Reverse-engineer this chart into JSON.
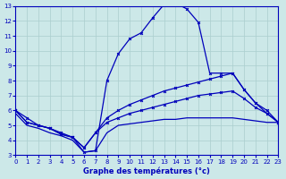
{
  "title": "Graphe des températures (°c)",
  "bg_color": "#cce8e8",
  "grid_color": "#aacece",
  "line_color": "#0000bb",
  "xlim": [
    0,
    23
  ],
  "ylim": [
    3,
    13
  ],
  "xticks": [
    0,
    1,
    2,
    3,
    4,
    5,
    6,
    7,
    8,
    9,
    10,
    11,
    12,
    13,
    14,
    15,
    16,
    17,
    18,
    19,
    20,
    21,
    22,
    23
  ],
  "yticks": [
    3,
    4,
    5,
    6,
    7,
    8,
    9,
    10,
    11,
    12,
    13
  ],
  "curve1_x": [
    0,
    1,
    2,
    3,
    4,
    5,
    6,
    7,
    8,
    9,
    10,
    11,
    12,
    13,
    14,
    15,
    16,
    17,
    18,
    19,
    20,
    21,
    22,
    23
  ],
  "curve1_y": [
    6.0,
    5.5,
    5.0,
    4.8,
    4.5,
    4.2,
    3.2,
    3.3,
    8.0,
    9.8,
    10.8,
    11.2,
    12.2,
    13.1,
    13.2,
    12.8,
    11.9,
    8.5,
    8.5,
    8.5,
    7.4,
    6.5,
    5.8,
    5.2
  ],
  "curve2_x": [
    0,
    1,
    2,
    3,
    4,
    5,
    6,
    7,
    8,
    9,
    10,
    11,
    12,
    13,
    14,
    15,
    16,
    17,
    18,
    19,
    20,
    21,
    22,
    23
  ],
  "curve2_y": [
    6.0,
    5.2,
    5.0,
    4.8,
    4.4,
    4.2,
    3.5,
    4.5,
    5.5,
    6.0,
    6.4,
    6.7,
    7.0,
    7.3,
    7.5,
    7.7,
    7.9,
    8.1,
    8.3,
    8.5,
    7.4,
    6.5,
    6.0,
    5.2
  ],
  "curve3_x": [
    0,
    1,
    2,
    3,
    4,
    5,
    6,
    7,
    8,
    9,
    10,
    11,
    12,
    13,
    14,
    15,
    16,
    17,
    18,
    19,
    20,
    21,
    22,
    23
  ],
  "curve3_y": [
    6.0,
    5.2,
    5.0,
    4.8,
    4.4,
    4.2,
    3.5,
    4.5,
    5.2,
    5.5,
    5.8,
    6.0,
    6.2,
    6.4,
    6.6,
    6.8,
    7.0,
    7.1,
    7.2,
    7.3,
    6.8,
    6.2,
    5.8,
    5.2
  ],
  "curve4_x": [
    0,
    1,
    2,
    3,
    4,
    5,
    6,
    7,
    8,
    9,
    10,
    11,
    12,
    13,
    14,
    15,
    16,
    17,
    18,
    19,
    20,
    21,
    22,
    23
  ],
  "curve4_y": [
    5.8,
    5.0,
    4.8,
    4.5,
    4.3,
    4.0,
    3.2,
    3.3,
    4.5,
    5.0,
    5.1,
    5.2,
    5.3,
    5.4,
    5.4,
    5.5,
    5.5,
    5.5,
    5.5,
    5.5,
    5.4,
    5.3,
    5.2,
    5.2
  ]
}
